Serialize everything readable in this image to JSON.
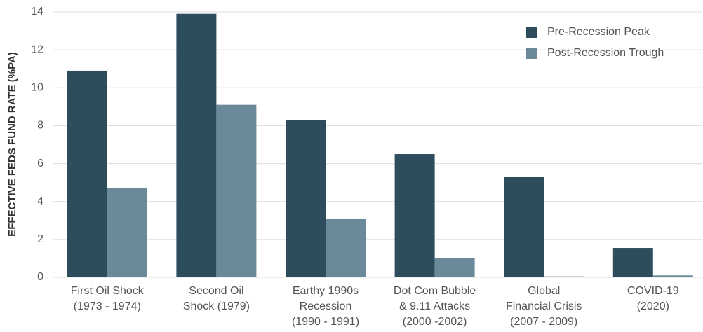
{
  "chart_data": {
    "type": "bar",
    "y_label": "EFFECTIVE FEDS FUND RATE (%PA)",
    "categories": [
      [
        "First Oil Shock",
        "(1973 - 1974)"
      ],
      [
        "Second Oil",
        "Shock (1979)"
      ],
      [
        "Earthy 1990s",
        "Recession",
        "(1990 - 1991)"
      ],
      [
        "Dot Com Bubble",
        "& 9.11 Attacks",
        "(2000 -2002)"
      ],
      [
        "Global",
        "Financial Crisis",
        "(2007 - 2009)"
      ],
      [
        "COVID-19",
        "(2020)"
      ]
    ],
    "series": [
      {
        "name": "Pre-Recession Peak",
        "color": "#2e4d5c",
        "values": [
          10.9,
          13.9,
          8.3,
          6.5,
          5.3,
          1.55
        ]
      },
      {
        "name": "Post-Recession Trough",
        "color": "#6a8a99",
        "values": [
          4.7,
          9.1,
          3.1,
          1.0,
          0.05,
          0.1
        ]
      }
    ],
    "ylim": [
      0,
      14
    ],
    "yticks": [
      0,
      2,
      4,
      6,
      8,
      10,
      12,
      14
    ],
    "grid": true,
    "legend": "upper right"
  }
}
